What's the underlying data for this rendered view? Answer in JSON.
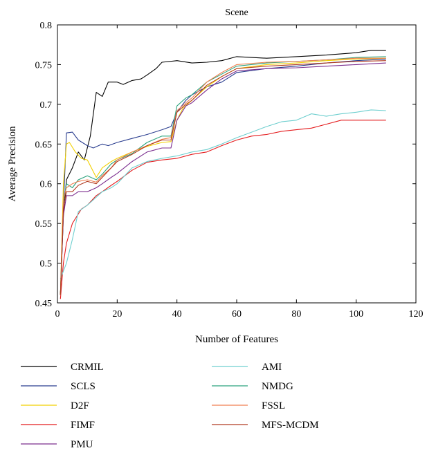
{
  "chart_data": {
    "type": "line",
    "title": "Scene",
    "xlabel": "Number of Features",
    "ylabel": "Average Precision",
    "xlim": [
      0,
      120
    ],
    "ylim": [
      0.45,
      0.8
    ],
    "xticks": [
      0,
      20,
      40,
      60,
      80,
      100,
      120
    ],
    "yticks": [
      0.45,
      0.5,
      0.55,
      0.6,
      0.65,
      0.7,
      0.75,
      0.8
    ],
    "xtick_labels": [
      "0",
      "20",
      "40",
      "60",
      "80",
      "100",
      "120"
    ],
    "ytick_labels": [
      "0.45",
      "0.5",
      "0.55",
      "0.6",
      "0.65",
      "0.7",
      "0.75",
      "0.8"
    ],
    "grid": false,
    "legend_position": "below",
    "series": [
      {
        "name": "CRMIL",
        "color": "#000000",
        "x": [
          1,
          2,
          3,
          5,
          7,
          9,
          11,
          13,
          15,
          17,
          20,
          22,
          25,
          28,
          30,
          33,
          35,
          40,
          45,
          50,
          55,
          60,
          70,
          80,
          90,
          100,
          105,
          110
        ],
        "y": [
          0.46,
          0.56,
          0.605,
          0.62,
          0.64,
          0.63,
          0.66,
          0.715,
          0.71,
          0.728,
          0.728,
          0.725,
          0.73,
          0.732,
          0.737,
          0.745,
          0.753,
          0.755,
          0.752,
          0.753,
          0.755,
          0.76,
          0.758,
          0.76,
          0.762,
          0.765,
          0.768,
          0.768
        ]
      },
      {
        "name": "SCLS",
        "color": "#2a3d8f",
        "x": [
          1,
          2,
          3,
          5,
          7,
          10,
          12,
          15,
          17,
          20,
          25,
          30,
          35,
          38,
          40,
          43,
          45,
          50,
          55,
          60,
          70,
          80,
          90,
          100,
          110
        ],
        "y": [
          0.46,
          0.57,
          0.664,
          0.665,
          0.655,
          0.648,
          0.645,
          0.65,
          0.648,
          0.652,
          0.657,
          0.662,
          0.668,
          0.672,
          0.69,
          0.705,
          0.712,
          0.722,
          0.728,
          0.74,
          0.745,
          0.748,
          0.752,
          0.755,
          0.757
        ]
      },
      {
        "name": "D2F",
        "color": "#f2d000",
        "x": [
          1,
          2,
          3,
          4,
          6,
          8,
          10,
          13,
          15,
          18,
          20,
          25,
          30,
          35,
          38,
          40,
          42,
          45,
          50,
          55,
          60,
          70,
          80,
          90,
          100,
          110
        ],
        "y": [
          0.46,
          0.6,
          0.65,
          0.652,
          0.64,
          0.632,
          0.63,
          0.608,
          0.62,
          0.628,
          0.632,
          0.64,
          0.647,
          0.652,
          0.653,
          0.68,
          0.695,
          0.705,
          0.722,
          0.735,
          0.745,
          0.75,
          0.752,
          0.755,
          0.757,
          0.758
        ]
      },
      {
        "name": "FIMF",
        "color": "#e41a1c",
        "x": [
          1,
          2,
          3,
          5,
          8,
          10,
          13,
          15,
          18,
          20,
          25,
          30,
          35,
          40,
          45,
          50,
          55,
          60,
          65,
          70,
          75,
          80,
          85,
          90,
          95,
          100,
          105,
          110
        ],
        "y": [
          0.455,
          0.5,
          0.525,
          0.55,
          0.568,
          0.573,
          0.585,
          0.59,
          0.598,
          0.603,
          0.617,
          0.627,
          0.63,
          0.632,
          0.637,
          0.64,
          0.648,
          0.655,
          0.66,
          0.662,
          0.666,
          0.668,
          0.67,
          0.675,
          0.68,
          0.68,
          0.68,
          0.68
        ]
      },
      {
        "name": "PMU",
        "color": "#7b2d8e",
        "x": [
          1,
          2,
          3,
          5,
          7,
          10,
          13,
          15,
          18,
          20,
          25,
          30,
          35,
          38,
          40,
          43,
          45,
          50,
          55,
          60,
          70,
          80,
          90,
          100,
          110
        ],
        "y": [
          0.46,
          0.56,
          0.585,
          0.585,
          0.59,
          0.59,
          0.595,
          0.6,
          0.608,
          0.613,
          0.628,
          0.64,
          0.645,
          0.645,
          0.68,
          0.698,
          0.702,
          0.718,
          0.732,
          0.742,
          0.745,
          0.746,
          0.748,
          0.75,
          0.752
        ]
      },
      {
        "name": "AMI",
        "color": "#6ecfcf",
        "x": [
          1,
          2,
          3,
          5,
          7,
          10,
          13,
          15,
          18,
          20,
          25,
          30,
          35,
          40,
          45,
          50,
          55,
          60,
          65,
          70,
          75,
          80,
          85,
          90,
          95,
          100,
          105,
          110
        ],
        "y": [
          0.48,
          0.49,
          0.5,
          0.53,
          0.565,
          0.573,
          0.583,
          0.59,
          0.595,
          0.6,
          0.62,
          0.628,
          0.632,
          0.635,
          0.64,
          0.643,
          0.65,
          0.658,
          0.665,
          0.672,
          0.678,
          0.68,
          0.688,
          0.685,
          0.688,
          0.69,
          0.693,
          0.692
        ]
      },
      {
        "name": "NMDG",
        "color": "#2ca37d",
        "x": [
          1,
          2,
          3,
          5,
          7,
          10,
          13,
          15,
          18,
          20,
          25,
          30,
          35,
          38,
          40,
          43,
          45,
          50,
          55,
          60,
          70,
          80,
          90,
          100,
          110
        ],
        "y": [
          0.46,
          0.575,
          0.6,
          0.595,
          0.605,
          0.61,
          0.605,
          0.612,
          0.625,
          0.63,
          0.638,
          0.652,
          0.66,
          0.66,
          0.698,
          0.708,
          0.712,
          0.728,
          0.738,
          0.748,
          0.752,
          0.754,
          0.756,
          0.759,
          0.76
        ]
      },
      {
        "name": "FSSL",
        "color": "#f07f50",
        "x": [
          1,
          2,
          3,
          5,
          7,
          10,
          13,
          15,
          18,
          20,
          25,
          30,
          35,
          38,
          40,
          43,
          45,
          50,
          55,
          60,
          70,
          80,
          90,
          100,
          110
        ],
        "y": [
          0.46,
          0.58,
          0.595,
          0.6,
          0.603,
          0.605,
          0.602,
          0.61,
          0.62,
          0.63,
          0.64,
          0.648,
          0.656,
          0.658,
          0.692,
          0.702,
          0.708,
          0.728,
          0.74,
          0.75,
          0.753,
          0.754,
          0.756,
          0.758,
          0.758
        ]
      },
      {
        "name": "MFS-MCDM",
        "color": "#b03a20",
        "x": [
          1,
          2,
          3,
          5,
          7,
          10,
          13,
          15,
          18,
          20,
          25,
          30,
          35,
          38,
          40,
          43,
          45,
          50,
          55,
          60,
          70,
          80,
          90,
          100,
          110
        ],
        "y": [
          0.46,
          0.568,
          0.59,
          0.59,
          0.598,
          0.603,
          0.6,
          0.608,
          0.62,
          0.628,
          0.637,
          0.648,
          0.655,
          0.655,
          0.69,
          0.7,
          0.705,
          0.724,
          0.735,
          0.745,
          0.748,
          0.75,
          0.752,
          0.754,
          0.755
        ]
      }
    ]
  }
}
